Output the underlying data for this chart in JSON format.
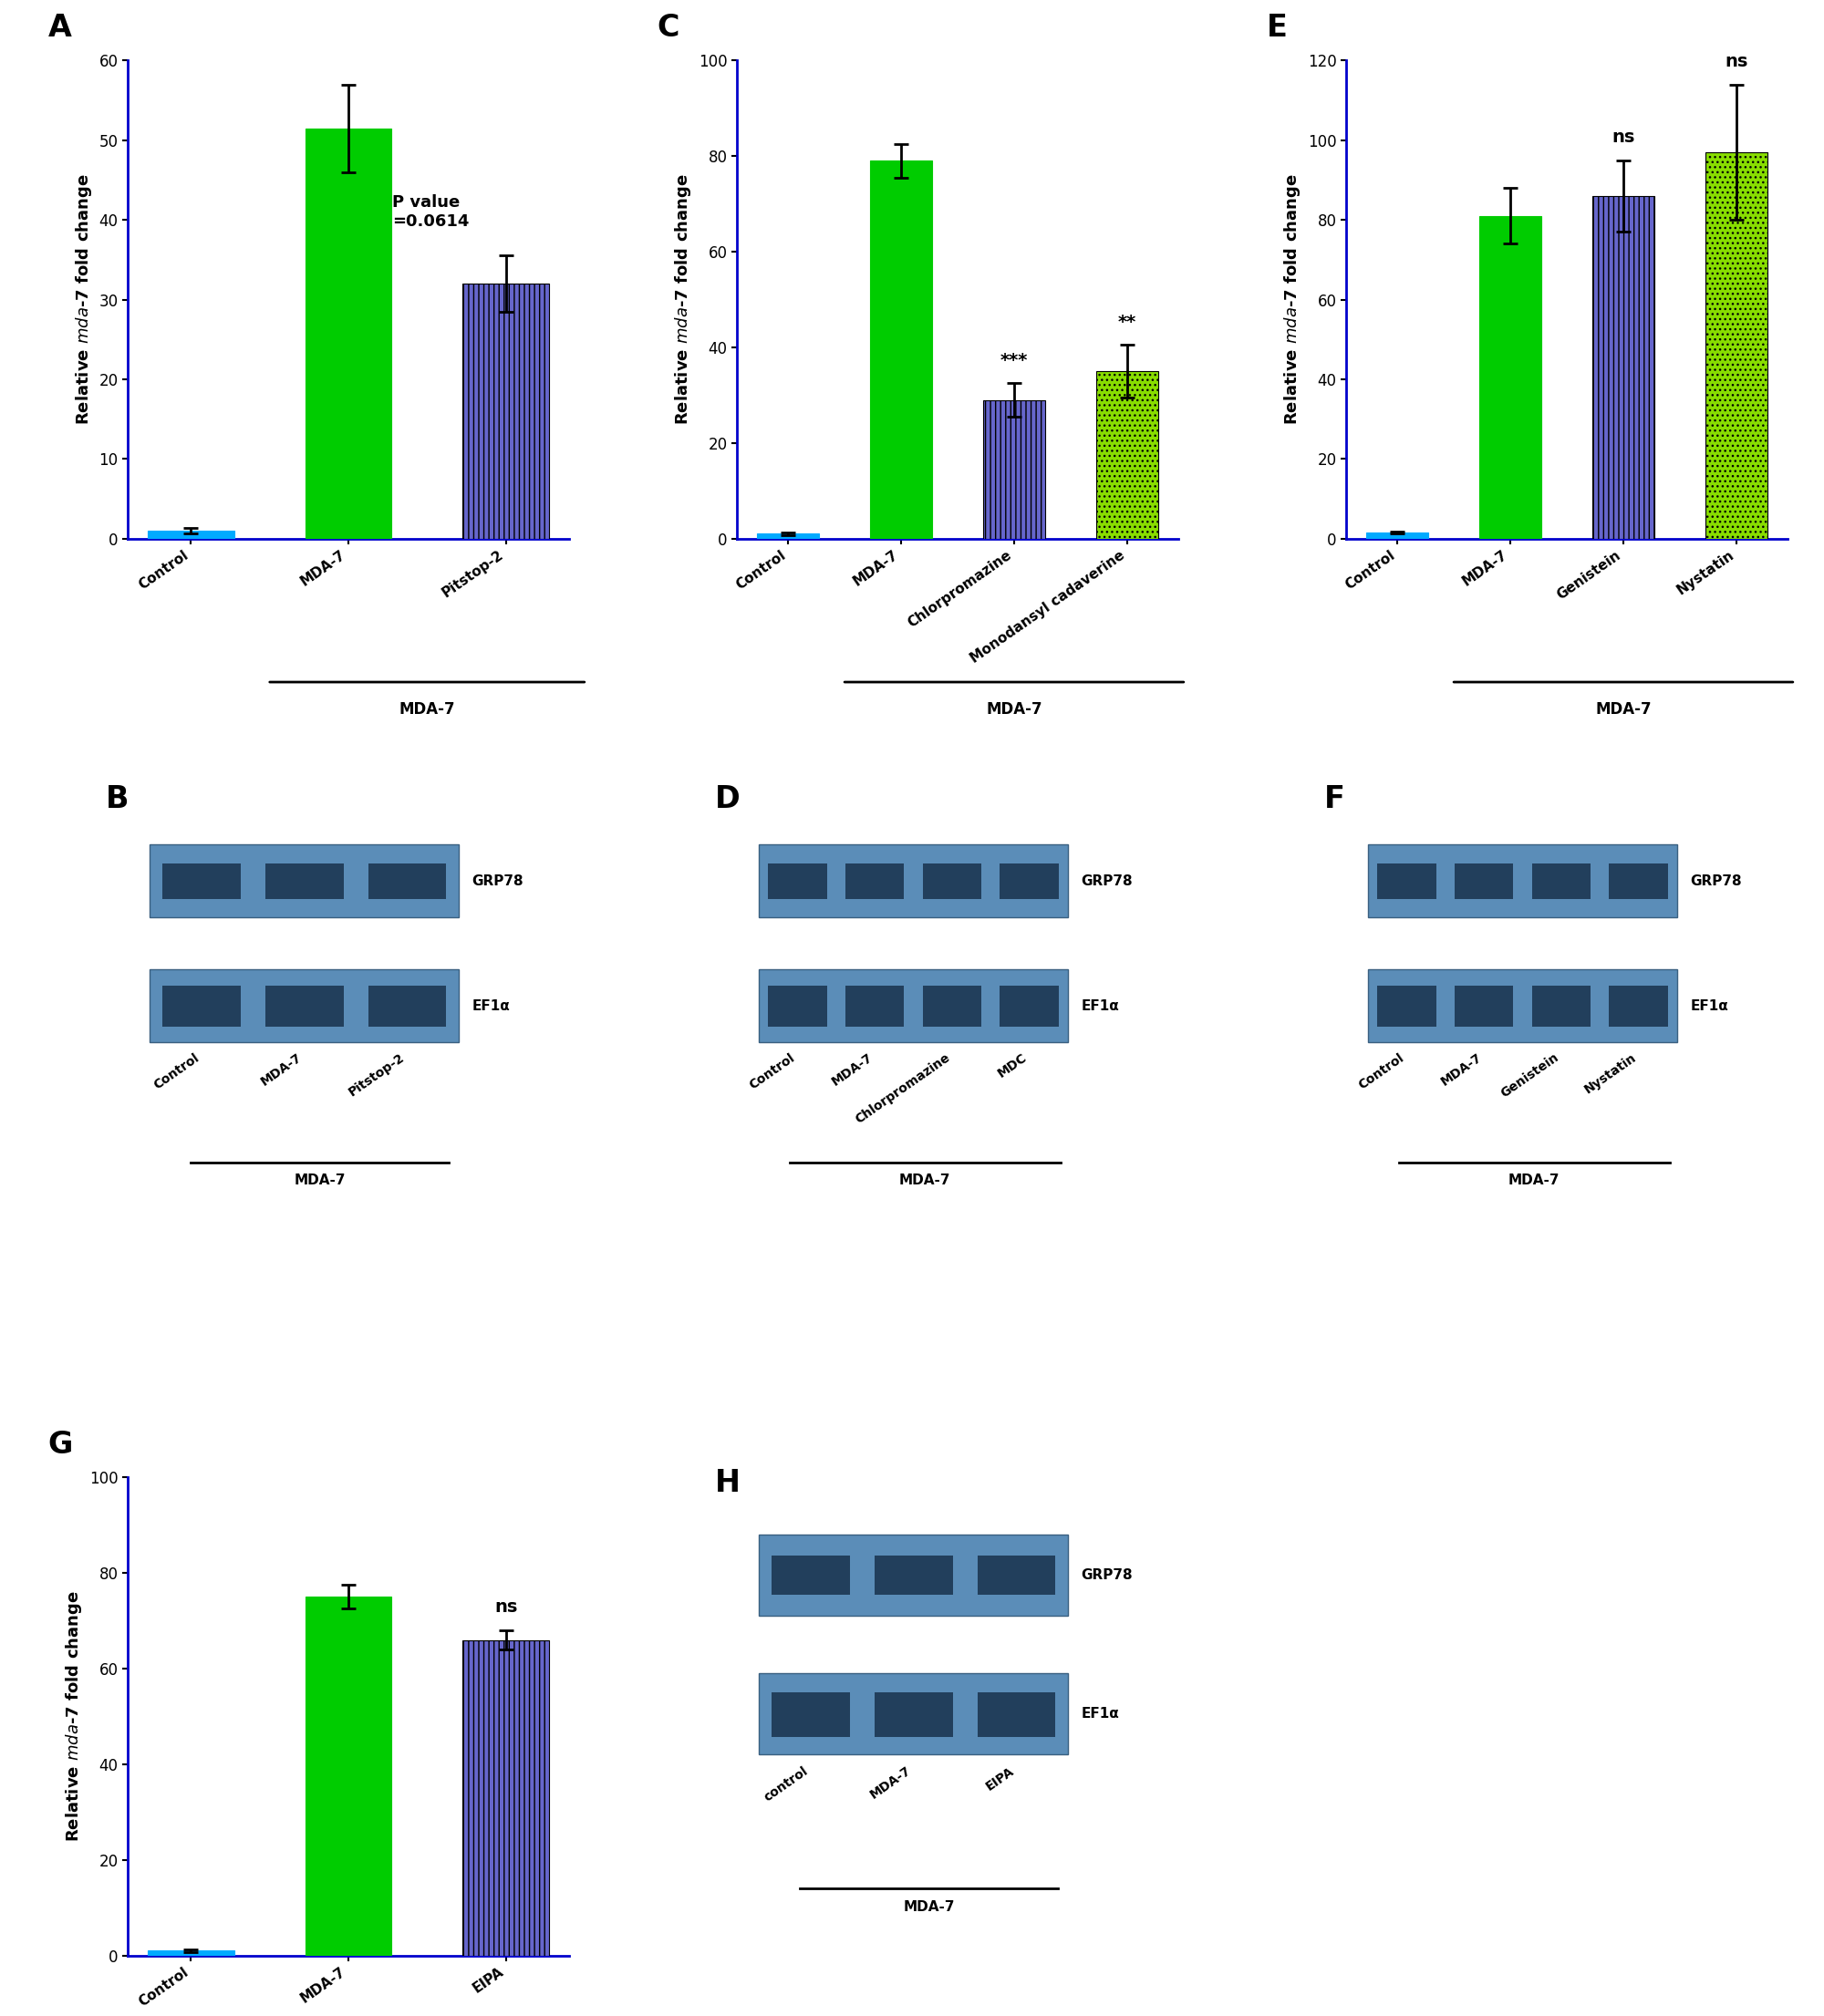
{
  "panel_A": {
    "label": "A",
    "categories": [
      "Control",
      "MDA-7",
      "Pitstop-2"
    ],
    "values": [
      1.0,
      51.5,
      32.0
    ],
    "errors": [
      0.3,
      5.5,
      3.5
    ],
    "colors": [
      "#00AAFF",
      "#00CC00",
      "#6666CC"
    ],
    "ylim": [
      0,
      60
    ],
    "yticks": [
      0,
      10,
      20,
      30,
      40,
      50,
      60
    ],
    "annotation": "P value\n=0.0614",
    "bracket_label": "MDA-7"
  },
  "panel_C": {
    "label": "C",
    "categories": [
      "Control",
      "MDA-7",
      "Chlorpromazine",
      "Monodansyl cadaverine"
    ],
    "values": [
      1.0,
      79.0,
      29.0,
      35.0
    ],
    "errors": [
      0.3,
      3.5,
      3.5,
      5.5
    ],
    "colors": [
      "#00AAFF",
      "#00CC00",
      "#6666CC",
      "#88DD00"
    ],
    "ylim": [
      0,
      100
    ],
    "yticks": [
      0,
      20,
      40,
      60,
      80,
      100
    ],
    "sig_labels": [
      "",
      "",
      "***",
      "**"
    ],
    "bracket_label": "MDA-7"
  },
  "panel_E": {
    "label": "E",
    "categories": [
      "Control",
      "MDA-7",
      "Genistein",
      "Nystatin"
    ],
    "values": [
      1.5,
      81.0,
      86.0,
      97.0
    ],
    "errors": [
      0.3,
      7.0,
      9.0,
      17.0
    ],
    "colors": [
      "#00AAFF",
      "#00CC00",
      "#6666CC",
      "#88DD00"
    ],
    "ylim": [
      0,
      120
    ],
    "yticks": [
      0,
      20,
      40,
      60,
      80,
      100,
      120
    ],
    "sig_labels": [
      "",
      "",
      "ns",
      "ns"
    ],
    "bracket_label": "MDA-7"
  },
  "panel_G": {
    "label": "G",
    "categories": [
      "Control",
      "MDA-7",
      "EIPA"
    ],
    "values": [
      1.0,
      75.0,
      66.0
    ],
    "errors": [
      0.3,
      2.5,
      2.0
    ],
    "colors": [
      "#00AAFF",
      "#00CC00",
      "#6666CC"
    ],
    "ylim": [
      0,
      100
    ],
    "yticks": [
      0,
      20,
      40,
      60,
      80,
      100
    ],
    "sig_labels": [
      "",
      "",
      "ns"
    ],
    "bracket_label": "MDA-7"
  },
  "blot_B": {
    "label": "B",
    "band_labels": [
      "GRP78",
      "EF1α"
    ],
    "x_labels": [
      "Control",
      "MDA-7",
      "Pitstop-2"
    ],
    "bracket_label": "MDA-7",
    "n_lanes": 3
  },
  "blot_D": {
    "label": "D",
    "band_labels": [
      "GRP78",
      "EF1α"
    ],
    "x_labels": [
      "Control",
      "MDA-7",
      "Chlorpromazine",
      "MDC"
    ],
    "bracket_label": "MDA-7",
    "n_lanes": 4
  },
  "blot_F": {
    "label": "F",
    "band_labels": [
      "GRP78",
      "EF1α"
    ],
    "x_labels": [
      "Control",
      "MDA-7",
      "Genistein",
      "Nystatin"
    ],
    "bracket_label": "MDA-7",
    "n_lanes": 4
  },
  "blot_H": {
    "label": "H",
    "band_labels": [
      "GRP78",
      "EF1α"
    ],
    "x_labels": [
      "control",
      "MDA-7",
      "EIPA"
    ],
    "bracket_label": "MDA-7",
    "n_lanes": 3
  },
  "bar_width": 0.55,
  "hatch_patterns": {
    "Control": "",
    "MDA-7": "",
    "Pitstop-2": "|||",
    "Chlorpromazine": "|||",
    "Monodansyl cadaverine": "...",
    "Genistein": "|||",
    "Nystatin": "...",
    "EIPA": "|||"
  },
  "axis_color": "#0000CC",
  "background_color": "#FFFFFF",
  "ylabel_text": "Relative $\\it{mda}$-7 fold change"
}
